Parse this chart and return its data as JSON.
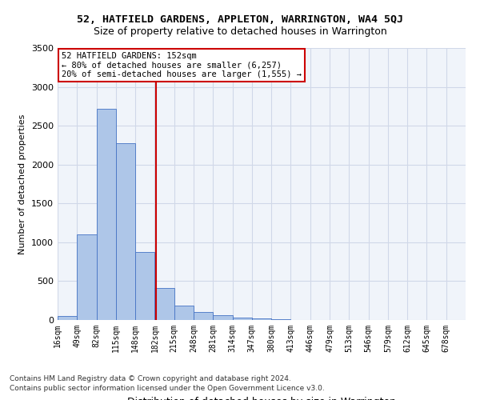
{
  "title1": "52, HATFIELD GARDENS, APPLETON, WARRINGTON, WA4 5QJ",
  "title2": "Size of property relative to detached houses in Warrington",
  "xlabel": "Distribution of detached houses by size in Warrington",
  "ylabel": "Number of detached properties",
  "bin_labels": [
    "16sqm",
    "49sqm",
    "82sqm",
    "115sqm",
    "148sqm",
    "182sqm",
    "215sqm",
    "248sqm",
    "281sqm",
    "314sqm",
    "347sqm",
    "380sqm",
    "413sqm",
    "446sqm",
    "479sqm",
    "513sqm",
    "546sqm",
    "579sqm",
    "612sqm",
    "645sqm",
    "678sqm"
  ],
  "bar_values": [
    50,
    1100,
    2720,
    2280,
    870,
    415,
    185,
    105,
    60,
    35,
    25,
    10,
    5,
    3,
    2,
    1,
    1,
    0,
    0,
    0
  ],
  "bar_color": "#aec6e8",
  "bar_edge_color": "#4472c4",
  "grid_color": "#d0d8e8",
  "vline_x": 4.55,
  "vline_color": "#cc0000",
  "annotation_text": "52 HATFIELD GARDENS: 152sqm\n← 80% of detached houses are smaller (6,257)\n20% of semi-detached houses are larger (1,555) →",
  "annotation_box_color": "#cc0000",
  "ylim": [
    0,
    3500
  ],
  "yticks": [
    0,
    500,
    1000,
    1500,
    2000,
    2500,
    3000,
    3500
  ],
  "footer1": "Contains HM Land Registry data © Crown copyright and database right 2024.",
  "footer2": "Contains public sector information licensed under the Open Government Licence v3.0.",
  "bg_color": "#f0f4fa"
}
